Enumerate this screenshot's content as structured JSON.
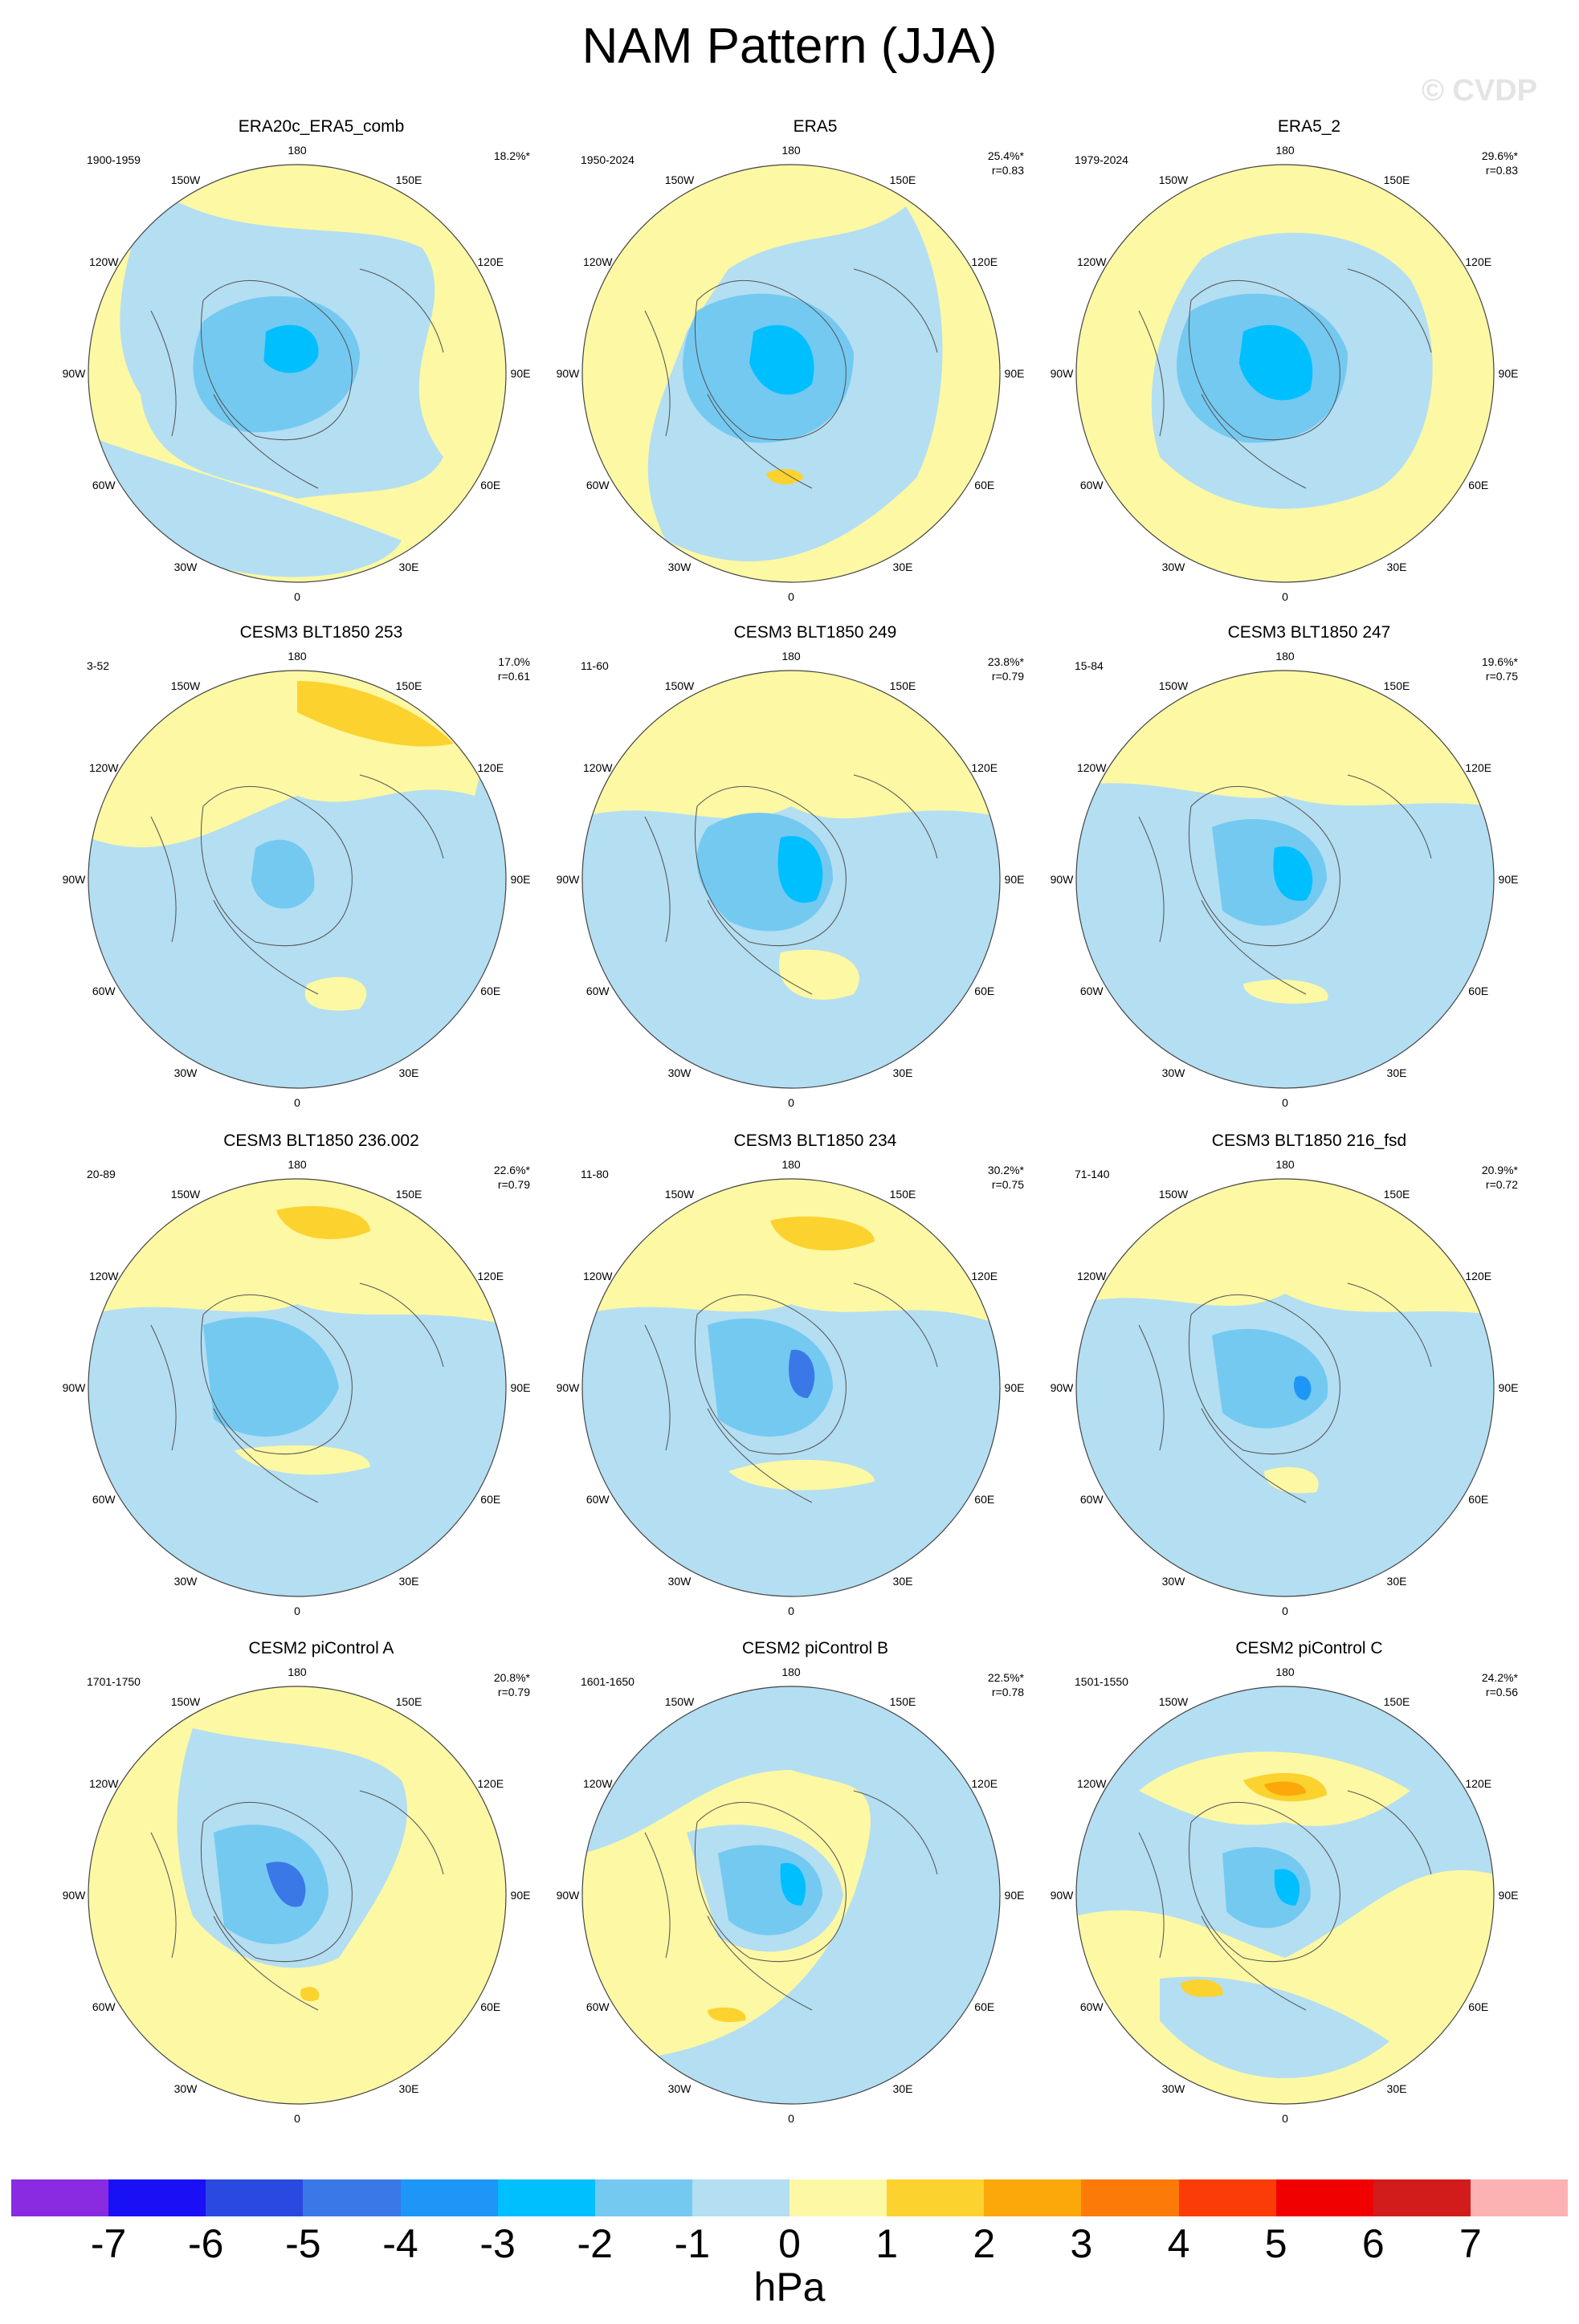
{
  "page": {
    "title": "NAM Pattern (JJA)",
    "watermark": "© CVDP"
  },
  "map_labels": [
    "180",
    "150E",
    "120E",
    "90E",
    "60E",
    "30E",
    "0",
    "30W",
    "60W",
    "90W",
    "120W",
    "150W"
  ],
  "panels": [
    {
      "title": "ERA20c_ERA5_comb",
      "years": "1900-1959",
      "pct": "18.2%*",
      "r": ""
    },
    {
      "title": "ERA5",
      "years": "1950-2024",
      "pct": "25.4%*",
      "r": "r=0.83"
    },
    {
      "title": "ERA5_2",
      "years": "1979-2024",
      "pct": "29.6%*",
      "r": "r=0.83"
    },
    {
      "title": "CESM3 BLT1850 253",
      "years": "3-52",
      "pct": "17.0%",
      "r": "r=0.61"
    },
    {
      "title": "CESM3 BLT1850 249",
      "years": "11-60",
      "pct": "23.8%*",
      "r": "r=0.79"
    },
    {
      "title": "CESM3 BLT1850 247",
      "years": "15-84",
      "pct": "19.6%*",
      "r": "r=0.75"
    },
    {
      "title": "CESM3 BLT1850 236.002",
      "years": "20-89",
      "pct": "22.6%*",
      "r": "r=0.79"
    },
    {
      "title": "CESM3 BLT1850 234",
      "years": "11-80",
      "pct": "30.2%*",
      "r": "r=0.75"
    },
    {
      "title": "CESM3 BLT1850 216_fsd",
      "years": "71-140",
      "pct": "20.9%*",
      "r": "r=0.72"
    },
    {
      "title": "CESM2 piControl A",
      "years": "1701-1750",
      "pct": "20.8%*",
      "r": "r=0.79"
    },
    {
      "title": "CESM2 piControl B",
      "years": "1601-1650",
      "pct": "22.5%*",
      "r": "r=0.78"
    },
    {
      "title": "CESM2 piControl C",
      "years": "1501-1550",
      "pct": "24.2%*",
      "r": "r=0.56"
    }
  ],
  "colorbar": {
    "units": "hPa",
    "ticks": [
      "-7",
      "-6",
      "-5",
      "-4",
      "-3",
      "-2",
      "-1",
      "0",
      "1",
      "2",
      "3",
      "4",
      "5",
      "6",
      "7"
    ],
    "colors": [
      "#8a2be2",
      "#1a10f5",
      "#2a49e0",
      "#3a78e8",
      "#1e96f8",
      "#00bfff",
      "#74c9f1",
      "#b4def2",
      "#fdf8a4",
      "#fcd22e",
      "#fca80a",
      "#fc7a08",
      "#fc3c06",
      "#f00000",
      "#d21b1b",
      "#fcb2b2"
    ]
  }
}
